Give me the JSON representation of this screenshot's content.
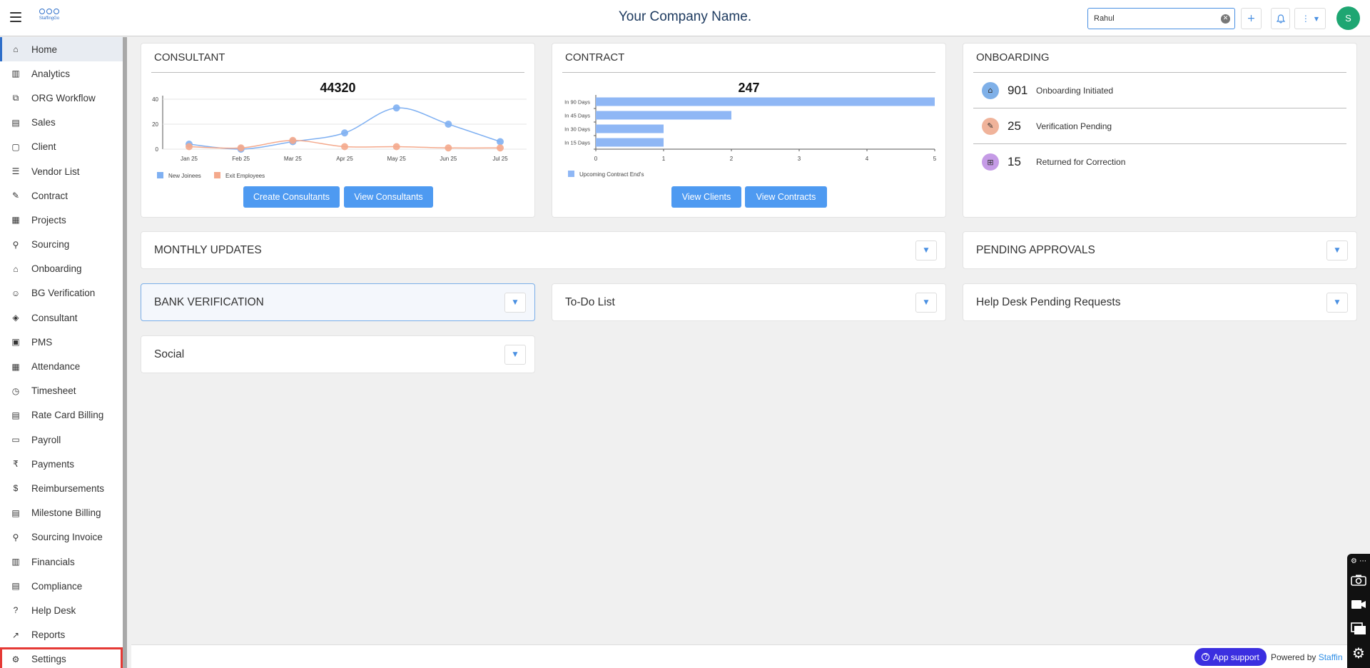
{
  "header": {
    "company": "Your Company Name.",
    "logo_text": "StaffingGo",
    "search_value": "Rahul",
    "add_label": "+",
    "more_label": "⋮",
    "avatar_initial": "S"
  },
  "sidebar": {
    "items": [
      {
        "label": "Home",
        "icon": "home-icon",
        "glyph": "⌂"
      },
      {
        "label": "Analytics",
        "icon": "analytics-icon",
        "glyph": "▥"
      },
      {
        "label": "ORG Workflow",
        "icon": "workflow-icon",
        "glyph": "⧉"
      },
      {
        "label": "Sales",
        "icon": "sales-icon",
        "glyph": "▤"
      },
      {
        "label": "Client",
        "icon": "client-icon",
        "glyph": "▢"
      },
      {
        "label": "Vendor List",
        "icon": "vendor-list-icon",
        "glyph": "☰"
      },
      {
        "label": "Contract",
        "icon": "contract-icon",
        "glyph": "✎"
      },
      {
        "label": "Projects",
        "icon": "projects-icon",
        "glyph": "▦"
      },
      {
        "label": "Sourcing",
        "icon": "sourcing-icon",
        "glyph": "⚲"
      },
      {
        "label": "Onboarding",
        "icon": "onboarding-icon",
        "glyph": "⌂"
      },
      {
        "label": "BG Verification",
        "icon": "bg-verification-icon",
        "glyph": "☺"
      },
      {
        "label": "Consultant",
        "icon": "consultant-icon",
        "glyph": "◈"
      },
      {
        "label": "PMS",
        "icon": "pms-icon",
        "glyph": "▣"
      },
      {
        "label": "Attendance",
        "icon": "attendance-icon",
        "glyph": "▦"
      },
      {
        "label": "Timesheet",
        "icon": "timesheet-icon",
        "glyph": "◷"
      },
      {
        "label": "Rate Card Billing",
        "icon": "rate-card-icon",
        "glyph": "▤"
      },
      {
        "label": "Payroll",
        "icon": "payroll-icon",
        "glyph": "▭"
      },
      {
        "label": "Payments",
        "icon": "payments-icon",
        "glyph": "₹"
      },
      {
        "label": "Reimbursements",
        "icon": "reimbursements-icon",
        "glyph": "$"
      },
      {
        "label": "Milestone Billing",
        "icon": "milestone-icon",
        "glyph": "▤"
      },
      {
        "label": "Sourcing Invoice",
        "icon": "sourcing-invoice-icon",
        "glyph": "⚲"
      },
      {
        "label": "Financials",
        "icon": "financials-icon",
        "glyph": "▥"
      },
      {
        "label": "Compliance",
        "icon": "compliance-icon",
        "glyph": "▤"
      },
      {
        "label": "Help Desk",
        "icon": "help-desk-icon",
        "glyph": "?"
      },
      {
        "label": "Reports",
        "icon": "reports-icon",
        "glyph": "↗"
      },
      {
        "label": "Settings",
        "icon": "settings-icon",
        "glyph": "⚙"
      }
    ]
  },
  "consultant": {
    "title": "CONSULTANT",
    "total": "44320",
    "create_label": "Create Consultants",
    "view_label": "View Consultants"
  },
  "contract": {
    "title": "CONTRACT",
    "total": "247",
    "view_clients_label": "View Clients",
    "view_contracts_label": "View Contracts"
  },
  "onboarding": {
    "title": "ONBOARDING",
    "rows": [
      {
        "count": "901",
        "label": "Onboarding Initiated",
        "color": "#7fb0e8"
      },
      {
        "count": "25",
        "label": "Verification Pending",
        "color": "#f0b39a"
      },
      {
        "count": "15",
        "label": "Returned for Correction",
        "color": "#c59be6"
      }
    ]
  },
  "panels": {
    "monthly_updates": "MONTHLY UPDATES",
    "pending_approvals": "PENDING APPROVALS",
    "bank_verification": "BANK VERIFICATION",
    "todo": "To-Do List",
    "helpdesk": "Help Desk Pending Requests",
    "social": "Social"
  },
  "footer": {
    "app_support": "App support",
    "powered_by": "Powered by",
    "brand": "Staffin"
  },
  "chart_data": [
    {
      "type": "line",
      "categories": [
        "Jan 25",
        "Feb 25",
        "Mar 25",
        "Apr 25",
        "May 25",
        "Jun 25",
        "Jul 25"
      ],
      "series": [
        {
          "name": "New Joinees",
          "color": "#7fb0f2",
          "values": [
            4,
            0,
            6,
            13,
            33,
            20,
            6
          ]
        },
        {
          "name": "Exit Employees",
          "color": "#f4a98c",
          "values": [
            2,
            1,
            7,
            2,
            2,
            1,
            1
          ]
        }
      ],
      "yticks": [
        0,
        20,
        40
      ],
      "ylim": [
        0,
        40
      ]
    },
    {
      "type": "bar",
      "orientation": "horizontal",
      "categories": [
        "In 90 Days",
        "In 45 Days",
        "In 30 Days",
        "In 15 Days"
      ],
      "series": [
        {
          "name": "Upcoming Contract End's",
          "color": "#8fb7f5",
          "values": [
            5,
            2,
            1,
            1
          ]
        }
      ],
      "xticks": [
        0,
        1,
        2,
        3,
        4,
        5
      ],
      "xlim": [
        0,
        5
      ]
    }
  ]
}
